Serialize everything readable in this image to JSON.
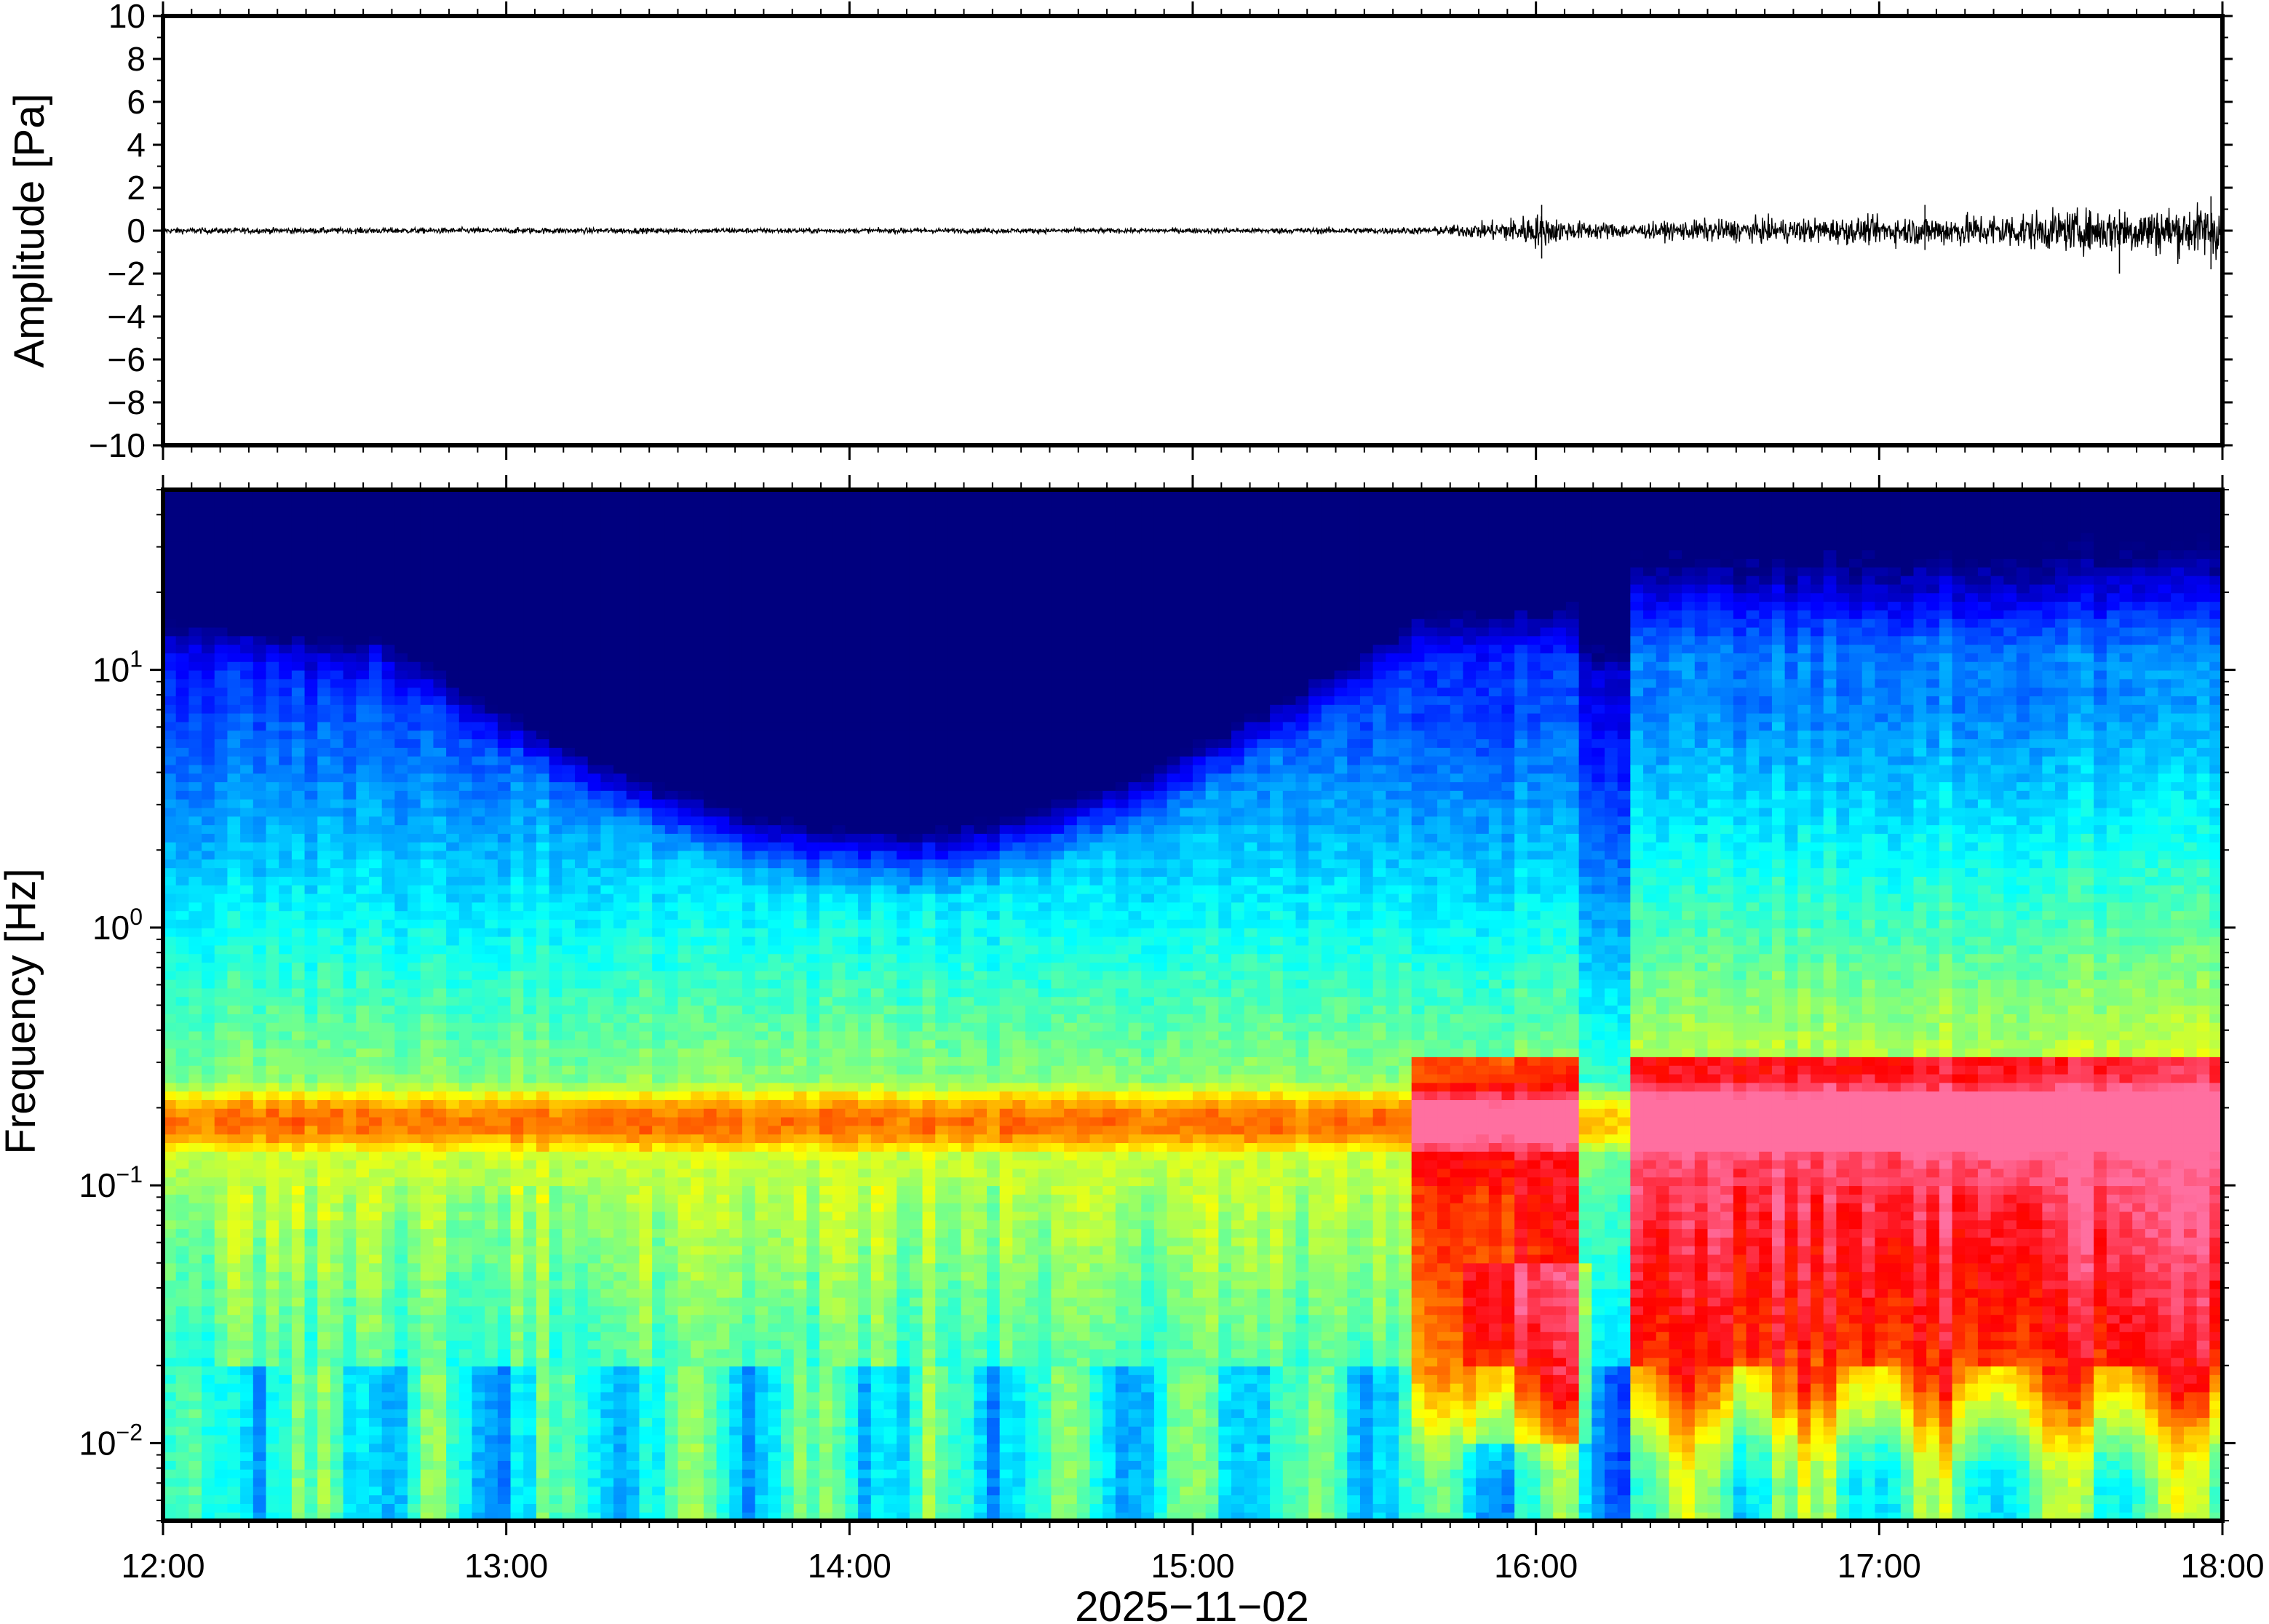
{
  "chart_data": [
    {
      "type": "line",
      "panel": "waveform",
      "ylabel": "Amplitude [Pa]",
      "xlim": [
        "12:00",
        "18:00"
      ],
      "ylim": [
        -10,
        10
      ],
      "yticks": [
        10,
        8,
        6,
        4,
        2,
        0,
        -2,
        -4,
        -6,
        -8,
        -10
      ],
      "ytick_labels": [
        "10",
        "8",
        "6",
        "4",
        "2",
        "0",
        "−2",
        "−4",
        "−6",
        "−8",
        "−10"
      ],
      "grid": false,
      "series": [
        {
          "color": "#000000",
          "envelope_x_hours": [
            12.0,
            13.0,
            14.0,
            15.0,
            15.7,
            15.85,
            16.0,
            16.1,
            16.3,
            16.5,
            17.0,
            17.5,
            18.0
          ],
          "envelope_half_amplitude_pa": [
            0.12,
            0.12,
            0.1,
            0.1,
            0.15,
            0.35,
            0.7,
            0.4,
            0.3,
            0.45,
            0.55,
            0.8,
            1.1
          ],
          "peaks": [
            {
              "x": "16:01",
              "min": -1.3,
              "max": 1.2
            },
            {
              "x": "17:08",
              "min": -0.9,
              "max": 1.2
            },
            {
              "x": "17:42",
              "min": -2.0,
              "max": 1.0
            },
            {
              "x": "17:58",
              "min": -1.8,
              "max": 1.6
            }
          ]
        }
      ]
    },
    {
      "type": "heatmap",
      "panel": "spectrogram",
      "ylabel": "Frequency [Hz]",
      "xlabel": "2025−11−02",
      "xlim": [
        "12:00",
        "18:00"
      ],
      "xticks": [
        "12:00",
        "13:00",
        "14:00",
        "15:00",
        "16:00",
        "17:00",
        "18:00"
      ],
      "yscale": "log",
      "ylim": [
        0.005,
        50
      ],
      "yticks": [
        0.01,
        0.1,
        1,
        10
      ],
      "ytick_labels": [
        {
          "base": "10",
          "exp": "−2"
        },
        {
          "base": "10",
          "exp": "−1"
        },
        {
          "base": "10",
          "exp": "0"
        },
        {
          "base": "10",
          "exp": "1"
        }
      ],
      "colormap": "jet",
      "colormap_stops": [
        "#00007f",
        "#0000ff",
        "#007fff",
        "#00ffff",
        "#7fff7f",
        "#ffff00",
        "#ff7f00",
        "#ff0000",
        "#ff6fa0"
      ],
      "features": {
        "background_band_hz": [
          0.13,
          0.25
        ],
        "event_start": "15:38",
        "event_gap_start": "16:08",
        "event_gap_end": "16:16",
        "late_broadband_start": "16:17"
      }
    }
  ]
}
